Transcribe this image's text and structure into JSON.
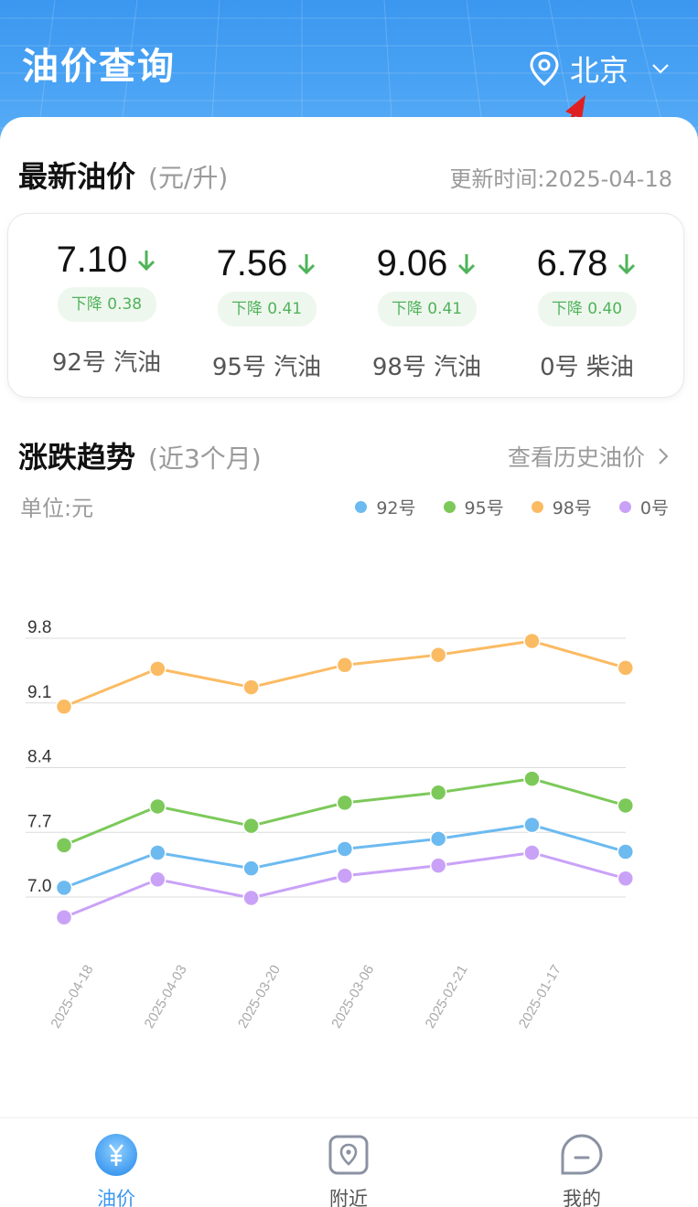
{
  "header": {
    "title": "油价查询",
    "city": "北京",
    "icons": {
      "location": "location-pin-icon",
      "dropdown": "chevron-down-icon"
    }
  },
  "latest": {
    "title": "最新油价",
    "unit": "(元/升)",
    "update_time": "更新时间:2025-04-18",
    "prices": [
      {
        "name": "92号 汽油",
        "price": "7.10",
        "change": "下降 0.38"
      },
      {
        "name": "95号 汽油",
        "price": "7.56",
        "change": "下降 0.41"
      },
      {
        "name": "98号 汽油",
        "price": "9.06",
        "change": "下降 0.41"
      },
      {
        "name": "0号 柴油",
        "price": "6.78",
        "change": "下降 0.40"
      }
    ]
  },
  "trend": {
    "title": "涨跌趋势",
    "subtitle": "(近3个月)",
    "history_link": "查看历史油价",
    "unit_label": "单位:元"
  },
  "colors": {
    "accent": "#3b97ef",
    "down_green": "#4fb35a",
    "s92": "#6cbaf0",
    "s95": "#7cc95a",
    "s98": "#fbbb63",
    "s0": "#c9a2f7"
  },
  "chart_data": {
    "type": "line",
    "x": [
      "2025-04-18",
      "2025-04-03",
      "2025-03-20",
      "2025-03-06",
      "2025-02-21",
      "2025-01-17",
      ""
    ],
    "yticks": [
      "9.8",
      "9.1",
      "8.4",
      "7.7",
      "7.0"
    ],
    "ylim": [
      7.0,
      9.8
    ],
    "grid": true,
    "legend_position": "top-right",
    "series": [
      {
        "name": "92号",
        "color": "#6cbaf0",
        "values": [
          7.1,
          7.48,
          7.31,
          7.52,
          7.63,
          7.78,
          7.49
        ]
      },
      {
        "name": "95号",
        "color": "#7cc95a",
        "values": [
          7.56,
          7.98,
          7.77,
          8.02,
          8.13,
          8.28,
          7.99
        ]
      },
      {
        "name": "98号",
        "color": "#fbbb63",
        "values": [
          9.06,
          9.47,
          9.27,
          9.51,
          9.62,
          9.77,
          9.48
        ]
      },
      {
        "name": "0号",
        "color": "#c9a2f7",
        "values": [
          6.78,
          7.19,
          6.99,
          7.23,
          7.34,
          7.48,
          7.2
        ]
      }
    ]
  },
  "tabbar": {
    "items": [
      {
        "label": "油价",
        "icon": "yuan-icon",
        "active": true
      },
      {
        "label": "附近",
        "icon": "nearby-location-icon",
        "active": false
      },
      {
        "label": "我的",
        "icon": "profile-chat-icon",
        "active": false
      }
    ]
  }
}
